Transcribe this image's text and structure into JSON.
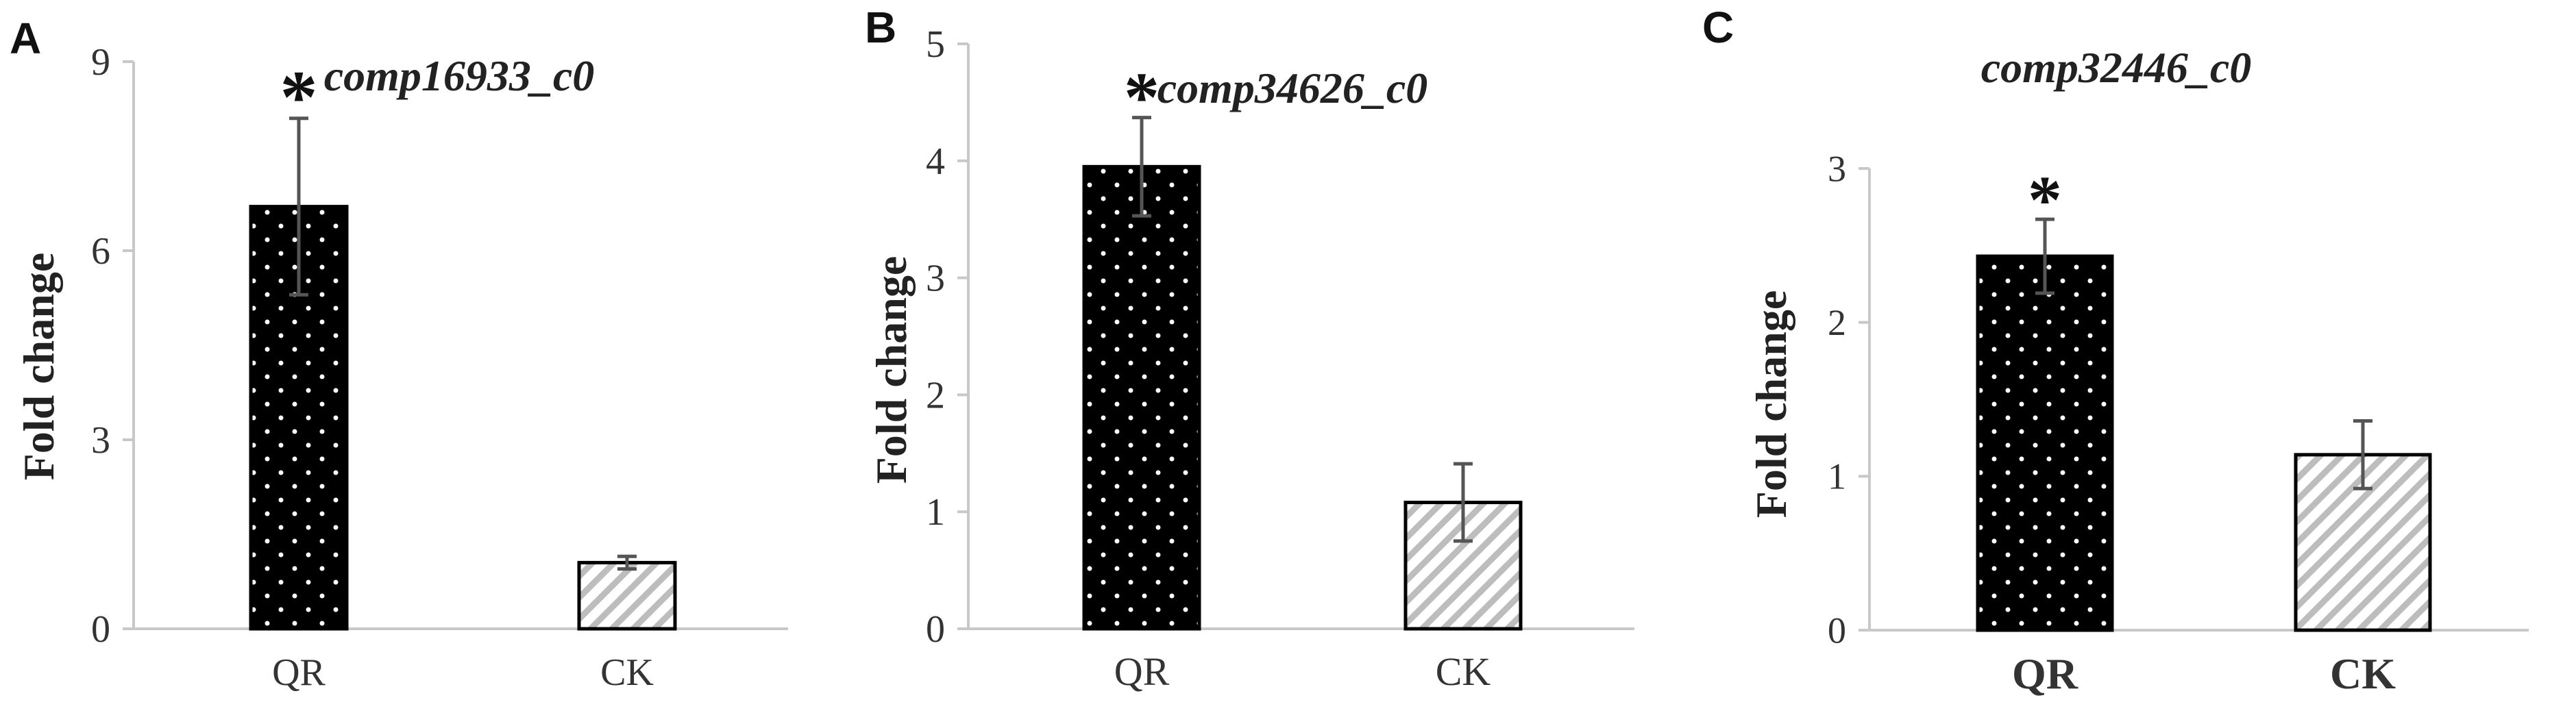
{
  "panels": [
    "A",
    "B",
    "C"
  ],
  "chart_data": [
    {
      "type": "bar",
      "title": "comp16933_c0",
      "ylabel": "Fold change",
      "xlabel": "",
      "categories": [
        "QR",
        "CK"
      ],
      "values": [
        6.7,
        1.05
      ],
      "errors": [
        1.4,
        0.1
      ],
      "significance": [
        "*",
        ""
      ],
      "ylim": [
        0,
        9
      ],
      "yticks": [
        "0",
        "3",
        "6",
        "9"
      ],
      "colors": [
        "#000000",
        "#ffffff"
      ],
      "patterns": [
        "white-dots",
        "gray-diagonal-hatch"
      ]
    },
    {
      "type": "bar",
      "title": "comp34626_c0",
      "ylabel": "Fold change",
      "xlabel": "",
      "categories": [
        "QR",
        "CK"
      ],
      "values": [
        3.95,
        1.08
      ],
      "errors": [
        0.42,
        0.33
      ],
      "significance": [
        "*",
        ""
      ],
      "ylim": [
        0,
        5
      ],
      "yticks": [
        "0",
        "1",
        "2",
        "3",
        "4",
        "5"
      ],
      "colors": [
        "#000000",
        "#ffffff"
      ],
      "patterns": [
        "white-dots",
        "gray-diagonal-hatch"
      ]
    },
    {
      "type": "bar",
      "title": "comp32446_c0",
      "ylabel": "Fold change",
      "xlabel": "",
      "categories": [
        "QR",
        "CK"
      ],
      "values": [
        2.43,
        1.14
      ],
      "errors": [
        0.24,
        0.22
      ],
      "significance": [
        "*",
        ""
      ],
      "ylim": [
        0,
        3
      ],
      "yticks": [
        "0",
        "1",
        "2",
        "3"
      ],
      "colors": [
        "#000000",
        "#ffffff"
      ],
      "patterns": [
        "white-dots",
        "gray-diagonal-hatch"
      ]
    }
  ]
}
